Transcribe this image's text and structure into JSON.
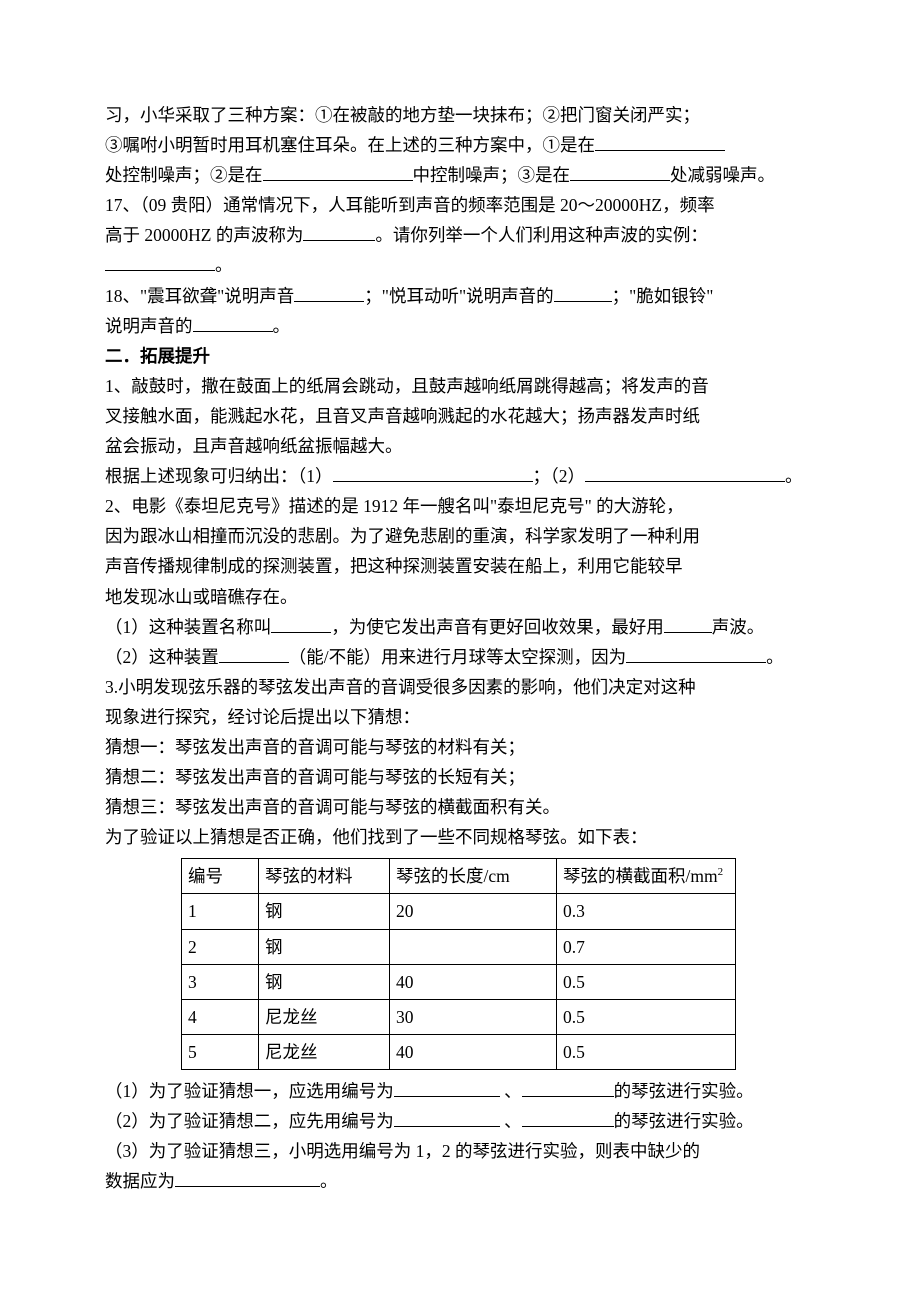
{
  "q16": {
    "line1": "习，小华采取了三种方案：①在被敲的地方垫一块抹布；②把门窗关闭严实；",
    "line2_a": "③嘱咐小明暂时用耳机塞住耳朵。在上述的三种方案中，①是在",
    "line3_a": "处控制噪声；②是在",
    "line3_b": "中控制噪声；③是在",
    "line3_c": "处减弱噪声。"
  },
  "q17": {
    "a": "17、（09 贵阳）通常情况下，人耳能听到声音的频率范围是 20～20000HZ，频率",
    "b1": "高于 20000HZ 的声波称为",
    "b2": "。请你列举一个人们利用这种声波的实例：",
    "b3": "。"
  },
  "q18": {
    "a": "18、\"震耳欲聋\"说明声音",
    "b": "；\"悦耳动听\"说明声音的",
    "c": "；\"脆如银铃\"",
    "d": "说明声音的",
    "e": "。"
  },
  "sec2title": "二．拓展提升",
  "s1": {
    "l1": "1、敲鼓时，撒在鼓面上的纸屑会跳动，且鼓声越响纸屑跳得越高；将发声的音",
    "l2": "叉接触水面，能溅起水花，且音叉声音越响溅起的水花越大；扬声器发声时纸",
    "l3": "盆会振动，且声音越响纸盆振幅越大。",
    "l4a": "根据上述现象可归纳出：（1）",
    "l4b": "；（2）",
    "l4c": "。"
  },
  "s2": {
    "l1": "2、电影《泰坦尼克号》描述的是 1912 年一艘名叫\"泰坦尼克号\" 的大游轮，",
    "l2": "因为跟冰山相撞而沉没的悲剧。为了避免悲剧的重演，科学家发明了一种利用",
    "l3": "声音传播规律制成的探测装置，把这种探测装置安装在船上，利用它能较早",
    "l4": "地发现冰山或暗礁存在。",
    "p1a": "（1）这种装置名称叫",
    "p1b": "，为使它发出声音有更好回收效果，最好用",
    "p1c": "声波。",
    "p2a": "（2）这种装置",
    "p2b": "（能/不能）用来进行月球等太空探测，因为",
    "p2c": "。"
  },
  "s3": {
    "l1": "3.小明发现弦乐器的琴弦发出声音的音调受很多因素的影响，他们决定对这种",
    "l2": "现象进行探究，经讨论后提出以下猜想：",
    "g1": "猜想一：琴弦发出声音的音调可能与琴弦的材料有关；",
    "g2": "猜想二：琴弦发出声音的音调可能与琴弦的长短有关；",
    "g3": "猜想三：琴弦发出声音的音调可能与琴弦的横截面积有关。",
    "l3": "为了验证以上猜想是否正确，他们找到了一些不同规格琴弦。如下表：",
    "p1a": "（1）为了验证猜想一，应选用编号为",
    "p1b": " 、",
    "p1c": "的琴弦进行实验。",
    "p2a": "（2）为了验证猜想二，应先用编号为",
    "p2b": " 、",
    "p2c": "的琴弦进行实验。",
    "p3a": "（3）为了验证猜想三，小明选用编号为 1，2 的琴弦进行实验，则表中缺少的",
    "p3b": "数据应为",
    "p3c": "。"
  },
  "table": {
    "headers": [
      "编号",
      "琴弦的材料",
      "琴弦的长度/cm",
      "琴弦的横截面积/mm"
    ],
    "unit_sup": "2",
    "rows": [
      [
        "1",
        "钢",
        "20",
        "0.3"
      ],
      [
        "2",
        "钢",
        "",
        "0.7"
      ],
      [
        "3",
        "钢",
        "40",
        "0.5"
      ],
      [
        "4",
        "尼龙丝",
        "30",
        "0.5"
      ],
      [
        "5",
        "尼龙丝",
        "40",
        "0.5"
      ]
    ],
    "col_widths": [
      "62px",
      "116px",
      "152px",
      "164px"
    ]
  },
  "blanks": {
    "w1": "130px",
    "w2": "150px",
    "w3": "100px",
    "w4": "72px",
    "w5": "110px",
    "w6": "70px",
    "w7": "58px",
    "w8": "80px",
    "w9": "200px",
    "w10": "200px",
    "w11": "60px",
    "w12": "48px",
    "w13": "70px",
    "w14": "140px",
    "w15": "106px",
    "w16": "92px",
    "w17": "106px",
    "w18": "92px",
    "w19": "145px"
  }
}
